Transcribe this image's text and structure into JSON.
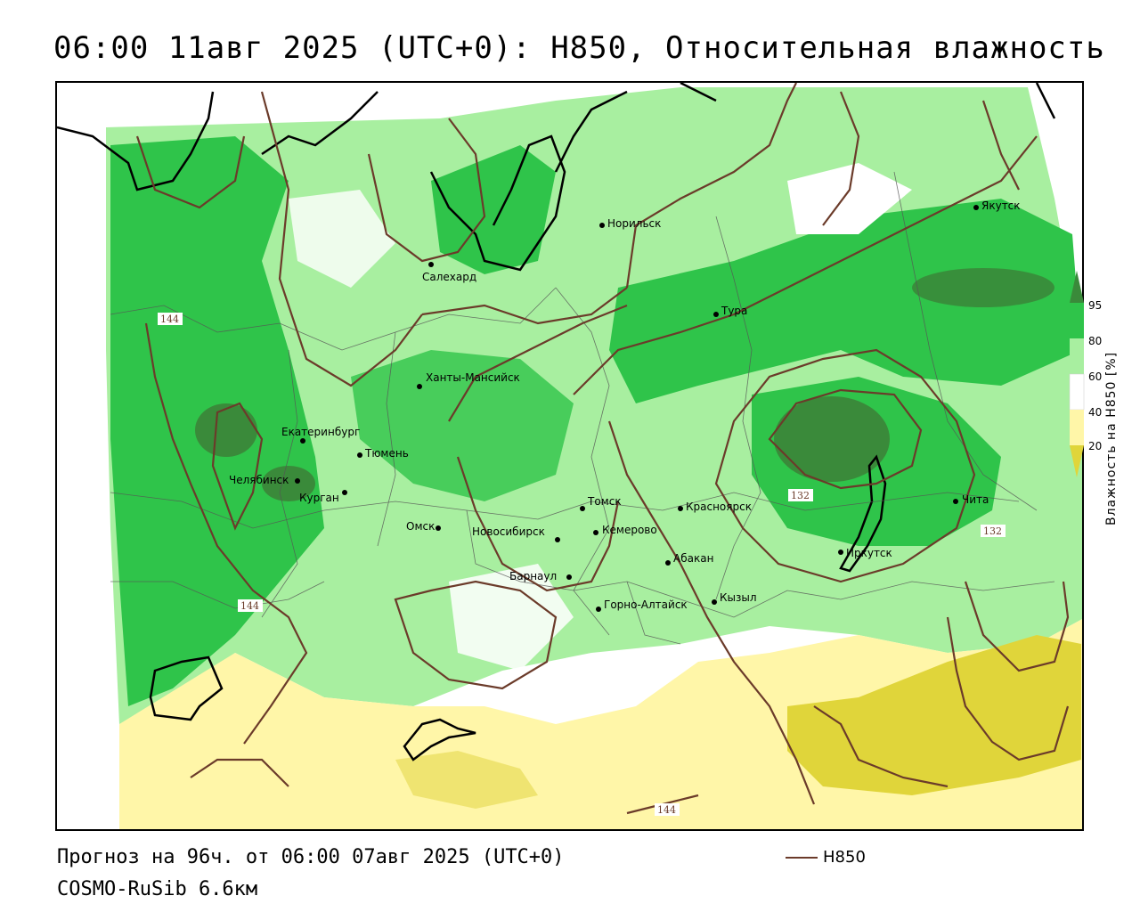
{
  "title": "06:00 11авг 2025 (UTC+0): H850, Относительная влажность",
  "footer": {
    "forecast": "Прогноз на 96ч. от 06:00 07авг 2025 (UTC+0)",
    "model": "COSMO-RuSib 6.6км"
  },
  "legend": {
    "title": "Влажность на H850 [%]",
    "ticks": [
      "95",
      "80",
      "60",
      "40",
      "20"
    ],
    "colors": {
      "95": "#3a8a3a",
      "80": "#2fc44a",
      "60": "#a8efa0",
      "40": "#ffffff",
      "20": "#fff6a8",
      "low": "#e0d53a"
    }
  },
  "line_legend": {
    "label": "H850",
    "color": "#6b3b2a"
  },
  "contour_labels": [
    "144",
    "144",
    "132",
    "132",
    "144"
  ],
  "cities": [
    {
      "name": "Салехард"
    },
    {
      "name": "Норильск"
    },
    {
      "name": "Якутск"
    },
    {
      "name": "Тура"
    },
    {
      "name": "Ханты-Мансийск"
    },
    {
      "name": "Екатеринбург"
    },
    {
      "name": "Тюмень"
    },
    {
      "name": "Челябинск"
    },
    {
      "name": "Курган"
    },
    {
      "name": "Омск"
    },
    {
      "name": "Новосибирск"
    },
    {
      "name": "Томск"
    },
    {
      "name": "Кемерово"
    },
    {
      "name": "Красноярск"
    },
    {
      "name": "Абакан"
    },
    {
      "name": "Барнаул"
    },
    {
      "name": "Горно-Алтайск"
    },
    {
      "name": "Кызыл"
    },
    {
      "name": "Иркутск"
    },
    {
      "name": "Чита"
    }
  ]
}
